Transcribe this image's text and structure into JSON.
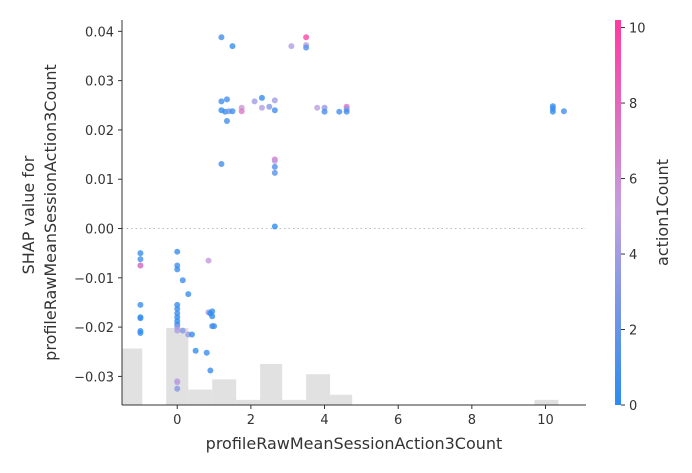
{
  "chart_data": {
    "type": "scatter",
    "xlabel": "profileRawMeanSessionAction3Count",
    "ylabel_lines": [
      "SHAP value for",
      "profileRawMeanSessionAction3Count"
    ],
    "xlim": [
      -1.5,
      11.1
    ],
    "ylim": [
      -0.0358,
      0.0423
    ],
    "x_ticks": [
      0,
      2,
      4,
      6,
      8,
      10
    ],
    "y_ticks": [
      -0.03,
      -0.02,
      -0.01,
      0.0,
      0.01,
      0.02,
      0.03,
      0.04
    ],
    "y_tick_labels": [
      "−0.03",
      "−0.02",
      "−0.01",
      "0.00",
      "0.01",
      "0.02",
      "0.03",
      "0.04"
    ],
    "zero_line": true,
    "colorbar": {
      "label": "action1Count",
      "min": 0,
      "max": 10.2,
      "ticks": [
        0,
        2,
        4,
        6,
        8,
        10
      ],
      "colors": [
        "#2b8cf0",
        "#c2a0e0",
        "#ff3aa0"
      ]
    },
    "histogram": {
      "bins": [
        {
          "x0": -1.5,
          "x1": -0.95,
          "count": 11
        },
        {
          "x0": -0.3,
          "x1": 0.3,
          "count": 15
        },
        {
          "x0": 0.3,
          "x1": 0.95,
          "count": 3
        },
        {
          "x0": 0.95,
          "x1": 1.6,
          "count": 5
        },
        {
          "x0": 1.6,
          "x1": 2.25,
          "count": 1
        },
        {
          "x0": 2.25,
          "x1": 2.85,
          "count": 8
        },
        {
          "x0": 2.85,
          "x1": 3.5,
          "count": 1
        },
        {
          "x0": 3.5,
          "x1": 4.15,
          "count": 6
        },
        {
          "x0": 4.15,
          "x1": 4.75,
          "count": 2
        },
        {
          "x0": 9.7,
          "x1": 10.35,
          "count": 1
        }
      ]
    },
    "points": [
      {
        "x": -1.0,
        "y": -0.0075,
        "c": 7.5
      },
      {
        "x": -1.0,
        "y": -0.0075,
        "c": 6.5
      },
      {
        "x": -1.0,
        "y": -0.005,
        "c": 0.5
      },
      {
        "x": -1.0,
        "y": -0.0062,
        "c": 0.8
      },
      {
        "x": -1.0,
        "y": -0.0155,
        "c": 0.6
      },
      {
        "x": -1.0,
        "y": -0.018,
        "c": 0.3
      },
      {
        "x": -1.0,
        "y": -0.0182,
        "c": 0.5
      },
      {
        "x": -1.0,
        "y": -0.0208,
        "c": 0.2
      },
      {
        "x": -1.0,
        "y": -0.0212,
        "c": 0.3
      },
      {
        "x": 0.0,
        "y": -0.0047,
        "c": 0.5
      },
      {
        "x": 0.0,
        "y": -0.0075,
        "c": 0.8
      },
      {
        "x": 0.0,
        "y": -0.0083,
        "c": 0.5
      },
      {
        "x": 0.15,
        "y": -0.0105,
        "c": 0.6
      },
      {
        "x": 0.3,
        "y": -0.0133,
        "c": 0.5
      },
      {
        "x": 0.0,
        "y": -0.0155,
        "c": 0.4
      },
      {
        "x": 0.0,
        "y": -0.0163,
        "c": 0.5
      },
      {
        "x": 0.0,
        "y": -0.0172,
        "c": 0.6
      },
      {
        "x": 0.0,
        "y": -0.018,
        "c": 0.2
      },
      {
        "x": 0.0,
        "y": -0.0188,
        "c": 0.3
      },
      {
        "x": 0.0,
        "y": -0.0195,
        "c": 0.5
      },
      {
        "x": 0.0,
        "y": -0.02,
        "c": 3.5
      },
      {
        "x": 0.0,
        "y": -0.0207,
        "c": 4.5
      },
      {
        "x": 0.15,
        "y": -0.0207,
        "c": 3.0
      },
      {
        "x": 0.3,
        "y": -0.0215,
        "c": 3.5
      },
      {
        "x": 0.4,
        "y": -0.0215,
        "c": 0.4
      },
      {
        "x": 0.5,
        "y": -0.0248,
        "c": 0.2
      },
      {
        "x": 0.8,
        "y": -0.0252,
        "c": 0.5
      },
      {
        "x": 0.9,
        "y": -0.0288,
        "c": 0.5
      },
      {
        "x": 0.0,
        "y": -0.031,
        "c": 4.5
      },
      {
        "x": 0.0,
        "y": -0.0312,
        "c": 5.0
      },
      {
        "x": 0.0,
        "y": -0.0325,
        "c": 3.0
      },
      {
        "x": 0.85,
        "y": -0.0065,
        "c": 5.5
      },
      {
        "x": 0.85,
        "y": -0.017,
        "c": 3.5
      },
      {
        "x": 0.9,
        "y": -0.0172,
        "c": 0.3
      },
      {
        "x": 0.95,
        "y": -0.0168,
        "c": 0.4
      },
      {
        "x": 0.95,
        "y": -0.0178,
        "c": 0.2
      },
      {
        "x": 0.95,
        "y": -0.0198,
        "c": 0.4
      },
      {
        "x": 1.0,
        "y": -0.0198,
        "c": 0.6
      },
      {
        "x": 1.2,
        "y": 0.0388,
        "c": 0.8
      },
      {
        "x": 1.5,
        "y": 0.037,
        "c": 0.5
      },
      {
        "x": 1.2,
        "y": 0.0258,
        "c": 0.8
      },
      {
        "x": 1.35,
        "y": 0.0262,
        "c": 0.8
      },
      {
        "x": 1.2,
        "y": 0.024,
        "c": 0.3
      },
      {
        "x": 1.3,
        "y": 0.0237,
        "c": 0.4
      },
      {
        "x": 1.4,
        "y": 0.0238,
        "c": 2.5
      },
      {
        "x": 1.5,
        "y": 0.0238,
        "c": 0.6
      },
      {
        "x": 1.35,
        "y": 0.0218,
        "c": 0.8
      },
      {
        "x": 1.2,
        "y": 0.0131,
        "c": 0.8
      },
      {
        "x": 1.75,
        "y": 0.0245,
        "c": 5.5
      },
      {
        "x": 1.75,
        "y": 0.0238,
        "c": 7.0
      },
      {
        "x": 2.1,
        "y": 0.0258,
        "c": 4.0
      },
      {
        "x": 2.3,
        "y": 0.0265,
        "c": 0.2
      },
      {
        "x": 2.3,
        "y": 0.0245,
        "c": 4.5
      },
      {
        "x": 2.5,
        "y": 0.0247,
        "c": 3.0
      },
      {
        "x": 2.65,
        "y": 0.026,
        "c": 4.0
      },
      {
        "x": 2.65,
        "y": 0.024,
        "c": 0.8
      },
      {
        "x": 2.65,
        "y": 0.014,
        "c": 7.5
      },
      {
        "x": 2.65,
        "y": 0.0137,
        "c": 5.0
      },
      {
        "x": 2.65,
        "y": 0.0125,
        "c": 1.2
      },
      {
        "x": 2.65,
        "y": 0.0113,
        "c": 1.5
      },
      {
        "x": 2.65,
        "y": 0.0004,
        "c": 0.1
      },
      {
        "x": 3.1,
        "y": 0.037,
        "c": 4.5
      },
      {
        "x": 3.5,
        "y": 0.0388,
        "c": 9.5
      },
      {
        "x": 3.5,
        "y": 0.0372,
        "c": 4.5
      },
      {
        "x": 3.5,
        "y": 0.0367,
        "c": 1.5
      },
      {
        "x": 3.8,
        "y": 0.0245,
        "c": 5.0
      },
      {
        "x": 4.0,
        "y": 0.0245,
        "c": 3.5
      },
      {
        "x": 4.0,
        "y": 0.0237,
        "c": 0.8
      },
      {
        "x": 4.4,
        "y": 0.0237,
        "c": 0.8
      },
      {
        "x": 4.6,
        "y": 0.0247,
        "c": 7.5
      },
      {
        "x": 4.6,
        "y": 0.0242,
        "c": 3.0
      },
      {
        "x": 4.6,
        "y": 0.0237,
        "c": 0.8
      },
      {
        "x": 10.2,
        "y": 0.0248,
        "c": 0.2
      },
      {
        "x": 10.2,
        "y": 0.0243,
        "c": 0.5
      },
      {
        "x": 10.2,
        "y": 0.0237,
        "c": 0.4
      },
      {
        "x": 10.5,
        "y": 0.0238,
        "c": 0.8
      }
    ]
  }
}
